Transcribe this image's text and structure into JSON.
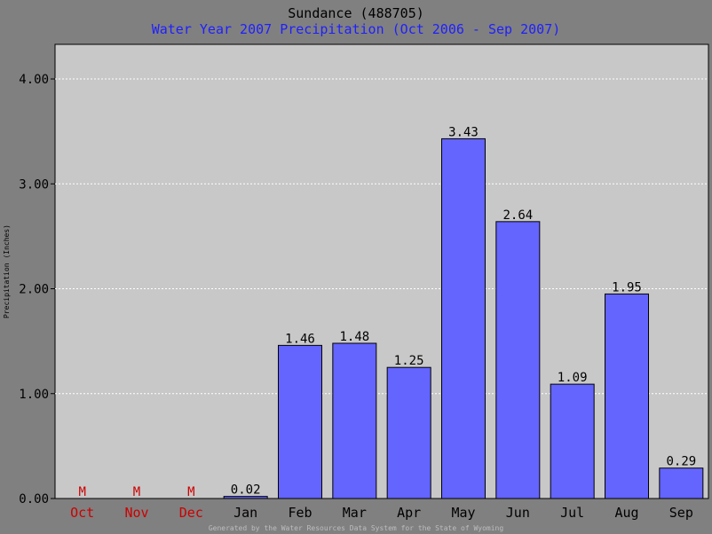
{
  "chart_data": {
    "type": "bar",
    "title": "Sundance (488705)",
    "subtitle": "Water Year 2007 Precipitation (Oct 2006 - Sep 2007)",
    "ylabel": "Precipitation (Inches)",
    "footer": "Generated by the Water Resources Data System for the State of Wyoming",
    "categories": [
      "Oct",
      "Nov",
      "Dec",
      "Jan",
      "Feb",
      "Mar",
      "Apr",
      "May",
      "Jun",
      "Jul",
      "Aug",
      "Sep"
    ],
    "values": [
      null,
      null,
      null,
      0.02,
      1.46,
      1.48,
      1.25,
      3.43,
      2.64,
      1.09,
      1.95,
      0.29
    ],
    "value_labels": [
      "M",
      "M",
      "M",
      "0.02",
      "1.46",
      "1.48",
      "1.25",
      "3.43",
      "2.64",
      "1.09",
      "1.95",
      "0.29"
    ],
    "missing": [
      true,
      true,
      true,
      false,
      false,
      false,
      false,
      false,
      false,
      false,
      false,
      false
    ],
    "ylim": [
      0,
      4.33
    ],
    "yticks": [
      0,
      1,
      2,
      3,
      4
    ],
    "ytick_labels": [
      "0.00",
      "1.00",
      "2.00",
      "3.00",
      "4.00"
    ],
    "grid": true,
    "colors": {
      "background": "#808080",
      "plot": "#c8c8c8",
      "bar": "#6464ff",
      "missing": "#cc0000",
      "title": "#000000",
      "subtitle": "#1f1fff",
      "grid": "#ffffff",
      "footer": "#bdbdbd"
    }
  }
}
